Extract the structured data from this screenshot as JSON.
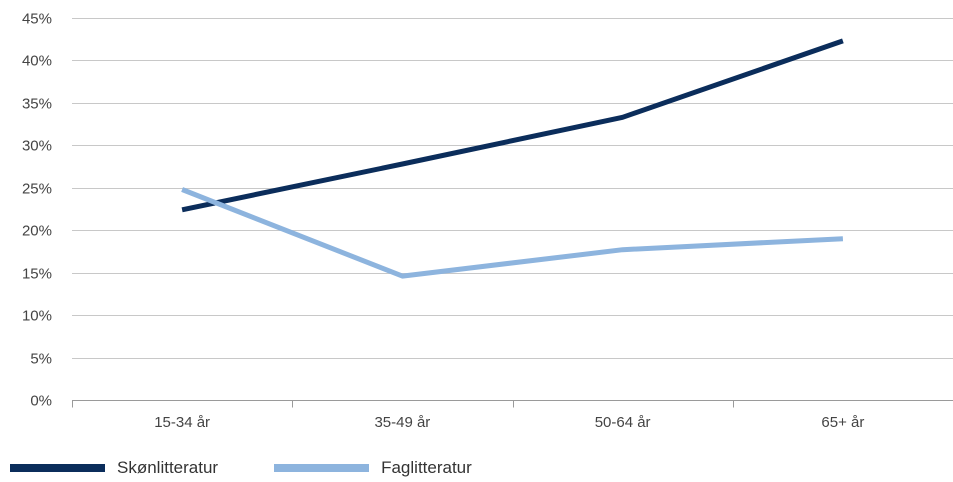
{
  "chart_data": {
    "type": "line",
    "categories": [
      "15-34 år",
      "35-49 år",
      "50-64 år",
      "65+ år"
    ],
    "series": [
      {
        "name": "Skønlitteratur",
        "values": [
          22.4,
          27.8,
          33.3,
          42.3
        ],
        "color": "#0b2d5b"
      },
      {
        "name": "Faglitteratur",
        "values": [
          24.8,
          14.6,
          17.7,
          19.0
        ],
        "color": "#8db4de"
      }
    ],
    "ylim": [
      0,
      45
    ],
    "yticks": [
      0,
      5,
      10,
      15,
      20,
      25,
      30,
      35,
      40,
      45
    ],
    "ytick_labels": [
      "0%",
      "5%",
      "10%",
      "15%",
      "20%",
      "25%",
      "30%",
      "35%",
      "40%",
      "45%"
    ],
    "grid": true,
    "legend_position": "bottom-left"
  }
}
